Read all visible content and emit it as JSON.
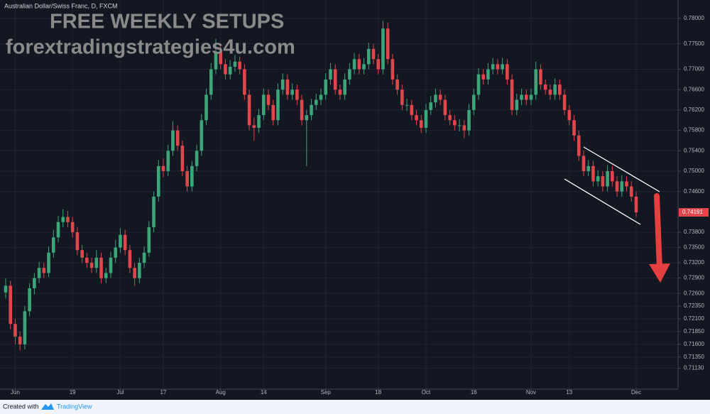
{
  "chart_data": {
    "type": "candlestick",
    "title": "Australian Dollar/Swiss Franc, D, FXCM",
    "watermark": "FREE WEEKLY SETUPS",
    "watermark_site": "forextradingstrategies4u.com",
    "footer": {
      "created": "Created with",
      "brand": "TradingView"
    },
    "up_color": "#3da57a",
    "down_color": "#e0474c",
    "grid": true,
    "ylim": [
      0.7072,
      0.7836
    ],
    "yticks": [
      {
        "value": 0.78,
        "label": "0.78000"
      },
      {
        "value": 0.775,
        "label": "0.77500"
      },
      {
        "value": 0.77,
        "label": "0.77000"
      },
      {
        "value": 0.766,
        "label": "0.76600"
      },
      {
        "value": 0.762,
        "label": "0.76200"
      },
      {
        "value": 0.758,
        "label": "0.75800"
      },
      {
        "value": 0.754,
        "label": "0.75400"
      },
      {
        "value": 0.75,
        "label": "0.75000"
      },
      {
        "value": 0.746,
        "label": "0.74600"
      },
      {
        "value": 0.738,
        "label": "0.73800"
      },
      {
        "value": 0.735,
        "label": "0.73500"
      },
      {
        "value": 0.732,
        "label": "0.73200"
      },
      {
        "value": 0.729,
        "label": "0.72900"
      },
      {
        "value": 0.726,
        "label": "0.72600"
      },
      {
        "value": 0.7235,
        "label": "0.72350"
      },
      {
        "value": 0.721,
        "label": "0.72100"
      },
      {
        "value": 0.7185,
        "label": "0.71850"
      },
      {
        "value": 0.716,
        "label": "0.71600"
      },
      {
        "value": 0.7135,
        "label": "0.71350"
      },
      {
        "value": 0.7113,
        "label": "0.71130"
      }
    ],
    "categories": [
      null,
      null,
      "Jun",
      null,
      null,
      null,
      null,
      null,
      null,
      null,
      null,
      null,
      null,
      null,
      "19",
      null,
      null,
      null,
      null,
      null,
      null,
      null,
      null,
      null,
      "Jul",
      null,
      null,
      null,
      null,
      null,
      null,
      null,
      null,
      "17",
      null,
      null,
      null,
      null,
      null,
      null,
      null,
      null,
      null,
      null,
      null,
      "Aug",
      null,
      null,
      null,
      null,
      null,
      null,
      null,
      null,
      "14",
      null,
      null,
      null,
      null,
      null,
      null,
      null,
      null,
      null,
      null,
      null,
      null,
      "Sep",
      null,
      null,
      null,
      null,
      null,
      null,
      null,
      null,
      null,
      null,
      "18",
      null,
      null,
      null,
      null,
      null,
      null,
      null,
      null,
      null,
      "Oct",
      null,
      null,
      null,
      null,
      null,
      null,
      null,
      null,
      null,
      "16",
      null,
      null,
      null,
      null,
      null,
      null,
      null,
      null,
      null,
      null,
      null,
      "Nov",
      null,
      null,
      null,
      null,
      null,
      null,
      null,
      "13",
      null,
      null,
      null,
      null,
      null,
      null,
      null,
      null,
      null,
      null,
      null,
      null,
      null,
      "Dec"
    ],
    "candles": [
      [
        0.7262,
        0.729,
        0.725,
        0.7275
      ],
      [
        0.7275,
        0.7285,
        0.719,
        0.72
      ],
      [
        0.72,
        0.721,
        0.716,
        0.7175
      ],
      [
        0.7175,
        0.7185,
        0.7148,
        0.716
      ],
      [
        0.716,
        0.7235,
        0.715,
        0.7225
      ],
      [
        0.7225,
        0.728,
        0.7215,
        0.727
      ],
      [
        0.727,
        0.73,
        0.7258,
        0.729
      ],
      [
        0.729,
        0.7322,
        0.728,
        0.731
      ],
      [
        0.731,
        0.732,
        0.729,
        0.73
      ],
      [
        0.73,
        0.7352,
        0.7292,
        0.734
      ],
      [
        0.734,
        0.7385,
        0.733,
        0.737
      ],
      [
        0.737,
        0.7412,
        0.736,
        0.74
      ],
      [
        0.74,
        0.7425,
        0.739,
        0.741
      ],
      [
        0.741,
        0.7422,
        0.739,
        0.74
      ],
      [
        0.74,
        0.741,
        0.737,
        0.738
      ],
      [
        0.738,
        0.739,
        0.7335,
        0.7345
      ],
      [
        0.7345,
        0.7355,
        0.732,
        0.733
      ],
      [
        0.733,
        0.734,
        0.731,
        0.732
      ],
      [
        0.732,
        0.733,
        0.73,
        0.731
      ],
      [
        0.731,
        0.7345,
        0.73,
        0.733
      ],
      [
        0.733,
        0.734,
        0.728,
        0.729
      ],
      [
        0.729,
        0.731,
        0.728,
        0.73
      ],
      [
        0.73,
        0.7342,
        0.729,
        0.733
      ],
      [
        0.733,
        0.7365,
        0.732,
        0.735
      ],
      [
        0.735,
        0.7388,
        0.734,
        0.7375
      ],
      [
        0.7375,
        0.7385,
        0.7335,
        0.7345
      ],
      [
        0.7345,
        0.7355,
        0.73,
        0.731
      ],
      [
        0.731,
        0.732,
        0.7275,
        0.729
      ],
      [
        0.729,
        0.733,
        0.728,
        0.732
      ],
      [
        0.732,
        0.7352,
        0.731,
        0.734
      ],
      [
        0.734,
        0.7402,
        0.7332,
        0.739
      ],
      [
        0.739,
        0.746,
        0.738,
        0.745
      ],
      [
        0.745,
        0.7522,
        0.744,
        0.751
      ],
      [
        0.751,
        0.7525,
        0.7488,
        0.75
      ],
      [
        0.75,
        0.7552,
        0.749,
        0.754
      ],
      [
        0.754,
        0.7598,
        0.753,
        0.758
      ],
      [
        0.758,
        0.759,
        0.754,
        0.755
      ],
      [
        0.755,
        0.756,
        0.749,
        0.75
      ],
      [
        0.75,
        0.751,
        0.746,
        0.747
      ],
      [
        0.747,
        0.752,
        0.746,
        0.751
      ],
      [
        0.751,
        0.7552,
        0.75,
        0.754
      ],
      [
        0.754,
        0.7612,
        0.753,
        0.76
      ],
      [
        0.76,
        0.7662,
        0.759,
        0.765
      ],
      [
        0.765,
        0.7712,
        0.764,
        0.77
      ],
      [
        0.77,
        0.776,
        0.769,
        0.7735
      ],
      [
        0.7735,
        0.775,
        0.77,
        0.771
      ],
      [
        0.771,
        0.772,
        0.768,
        0.769
      ],
      [
        0.769,
        0.7718,
        0.768,
        0.7705
      ],
      [
        0.7705,
        0.7728,
        0.7695,
        0.7715
      ],
      [
        0.7715,
        0.7725,
        0.769,
        0.77
      ],
      [
        0.77,
        0.771,
        0.764,
        0.765
      ],
      [
        0.765,
        0.766,
        0.758,
        0.759
      ],
      [
        0.759,
        0.7605,
        0.756,
        0.7585
      ],
      [
        0.7585,
        0.7622,
        0.7575,
        0.761
      ],
      [
        0.761,
        0.7662,
        0.76,
        0.765
      ],
      [
        0.765,
        0.766,
        0.762,
        0.763
      ],
      [
        0.763,
        0.764,
        0.759,
        0.76
      ],
      [
        0.76,
        0.7672,
        0.759,
        0.766
      ],
      [
        0.766,
        0.7692,
        0.765,
        0.768
      ],
      [
        0.768,
        0.769,
        0.764,
        0.765
      ],
      [
        0.765,
        0.7672,
        0.764,
        0.766
      ],
      [
        0.766,
        0.767,
        0.763,
        0.764
      ],
      [
        0.764,
        0.765,
        0.759,
        0.76
      ],
      [
        0.76,
        0.762,
        0.751,
        0.761
      ],
      [
        0.761,
        0.7642,
        0.76,
        0.763
      ],
      [
        0.763,
        0.7652,
        0.762,
        0.764
      ],
      [
        0.764,
        0.7662,
        0.763,
        0.765
      ],
      [
        0.765,
        0.7692,
        0.764,
        0.768
      ],
      [
        0.768,
        0.7712,
        0.767,
        0.77
      ],
      [
        0.77,
        0.771,
        0.765,
        0.766
      ],
      [
        0.766,
        0.767,
        0.764,
        0.765
      ],
      [
        0.765,
        0.7692,
        0.764,
        0.768
      ],
      [
        0.768,
        0.7712,
        0.767,
        0.77
      ],
      [
        0.77,
        0.7732,
        0.769,
        0.772
      ],
      [
        0.772,
        0.773,
        0.769,
        0.77
      ],
      [
        0.77,
        0.7722,
        0.769,
        0.771
      ],
      [
        0.771,
        0.7752,
        0.77,
        0.774
      ],
      [
        0.774,
        0.775,
        0.771,
        0.772
      ],
      [
        0.772,
        0.773,
        0.769,
        0.77
      ],
      [
        0.77,
        0.7795,
        0.769,
        0.778
      ],
      [
        0.778,
        0.7792,
        0.771,
        0.772
      ],
      [
        0.772,
        0.773,
        0.767,
        0.768
      ],
      [
        0.768,
        0.769,
        0.765,
        0.766
      ],
      [
        0.766,
        0.767,
        0.762,
        0.763
      ],
      [
        0.763,
        0.7642,
        0.7618,
        0.763
      ],
      [
        0.763,
        0.764,
        0.76,
        0.761
      ],
      [
        0.761,
        0.762,
        0.759,
        0.76
      ],
      [
        0.76,
        0.761,
        0.7575,
        0.7585
      ],
      [
        0.7585,
        0.7632,
        0.7575,
        0.762
      ],
      [
        0.762,
        0.7648,
        0.761,
        0.7635
      ],
      [
        0.7635,
        0.7662,
        0.7625,
        0.765
      ],
      [
        0.765,
        0.766,
        0.763,
        0.764
      ],
      [
        0.764,
        0.765,
        0.76,
        0.761
      ],
      [
        0.761,
        0.762,
        0.759,
        0.76
      ],
      [
        0.76,
        0.761,
        0.758,
        0.759
      ],
      [
        0.759,
        0.7602,
        0.7578,
        0.759
      ],
      [
        0.759,
        0.76,
        0.7565,
        0.758
      ],
      [
        0.758,
        0.7632,
        0.757,
        0.762
      ],
      [
        0.762,
        0.7662,
        0.761,
        0.765
      ],
      [
        0.765,
        0.7702,
        0.764,
        0.769
      ],
      [
        0.769,
        0.77,
        0.767,
        0.768
      ],
      [
        0.768,
        0.7712,
        0.767,
        0.77
      ],
      [
        0.77,
        0.7722,
        0.769,
        0.771
      ],
      [
        0.771,
        0.772,
        0.769,
        0.77
      ],
      [
        0.77,
        0.7722,
        0.769,
        0.771
      ],
      [
        0.771,
        0.772,
        0.767,
        0.768
      ],
      [
        0.768,
        0.769,
        0.761,
        0.762
      ],
      [
        0.762,
        0.7652,
        0.761,
        0.764
      ],
      [
        0.764,
        0.7662,
        0.763,
        0.765
      ],
      [
        0.765,
        0.766,
        0.763,
        0.764
      ],
      [
        0.764,
        0.7662,
        0.763,
        0.765
      ],
      [
        0.765,
        0.7715,
        0.764,
        0.77
      ],
      [
        0.77,
        0.771,
        0.766,
        0.767
      ],
      [
        0.767,
        0.768,
        0.765,
        0.766
      ],
      [
        0.766,
        0.767,
        0.764,
        0.765
      ],
      [
        0.765,
        0.7682,
        0.764,
        0.767
      ],
      [
        0.767,
        0.768,
        0.764,
        0.765
      ],
      [
        0.765,
        0.766,
        0.761,
        0.762
      ],
      [
        0.762,
        0.763,
        0.759,
        0.76
      ],
      [
        0.76,
        0.761,
        0.756,
        0.757
      ],
      [
        0.757,
        0.758,
        0.752,
        0.753
      ],
      [
        0.753,
        0.754,
        0.749,
        0.75
      ],
      [
        0.75,
        0.7522,
        0.749,
        0.751
      ],
      [
        0.751,
        0.752,
        0.747,
        0.748
      ],
      [
        0.748,
        0.7502,
        0.747,
        0.749
      ],
      [
        0.749,
        0.75,
        0.746,
        0.747
      ],
      [
        0.747,
        0.7512,
        0.746,
        0.75
      ],
      [
        0.75,
        0.751,
        0.747,
        0.748
      ],
      [
        0.748,
        0.749,
        0.745,
        0.746
      ],
      [
        0.746,
        0.7492,
        0.745,
        0.748
      ],
      [
        0.748,
        0.749,
        0.746,
        0.747
      ],
      [
        0.747,
        0.748,
        0.744,
        0.745
      ],
      [
        0.745,
        0.746,
        0.741,
        0.74191
      ]
    ]
  }
}
